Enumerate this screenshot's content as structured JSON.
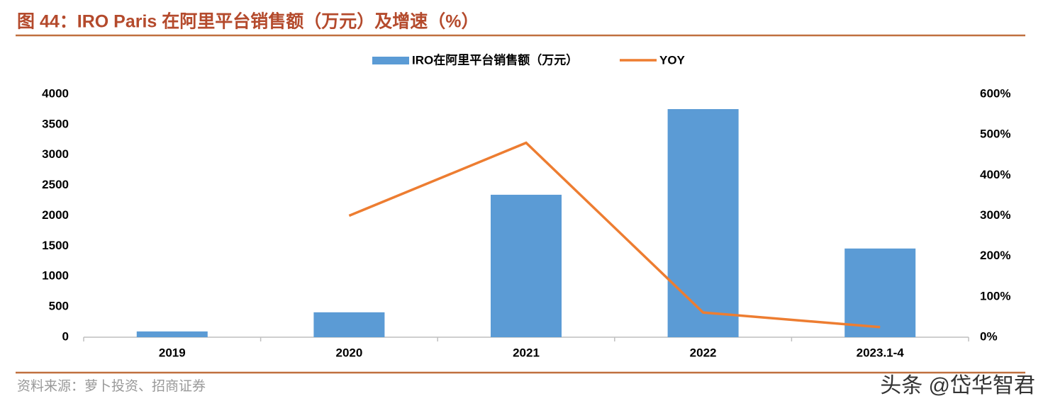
{
  "chart_data": {
    "type": "bar_line",
    "title": "图 44：IRO Paris 在阿里平台销售额（万元）及增速（%）",
    "categories": [
      "2019",
      "2020",
      "2021",
      "2022",
      "2023.1-4"
    ],
    "series": [
      {
        "name": "IRO在阿里平台销售额（万元）",
        "type": "bar",
        "color": "#5b9bd5",
        "values": [
          95,
          410,
          2345,
          3755,
          1460
        ]
      },
      {
        "name": "YOY",
        "type": "line",
        "color": "#ed7d31",
        "axis": "y2",
        "values": [
          null,
          300,
          480,
          61,
          25
        ]
      }
    ],
    "ylim": [
      0,
      4000
    ],
    "yticks": [
      0,
      500,
      1000,
      1500,
      2000,
      2500,
      3000,
      3500,
      4000
    ],
    "y2lim": [
      0,
      600
    ],
    "y2ticks": [
      {
        "value": 0,
        "label": "0%"
      },
      {
        "value": 100,
        "label": "100%"
      },
      {
        "value": 200,
        "label": "200%"
      },
      {
        "value": 300,
        "label": "300%"
      },
      {
        "value": 400,
        "label": "400%"
      },
      {
        "value": 500,
        "label": "500%"
      },
      {
        "value": 600,
        "label": "600%"
      }
    ],
    "grid": false,
    "source": "资料来源：萝卜投资、招商证券",
    "watermark": "头条 @岱华智君"
  }
}
